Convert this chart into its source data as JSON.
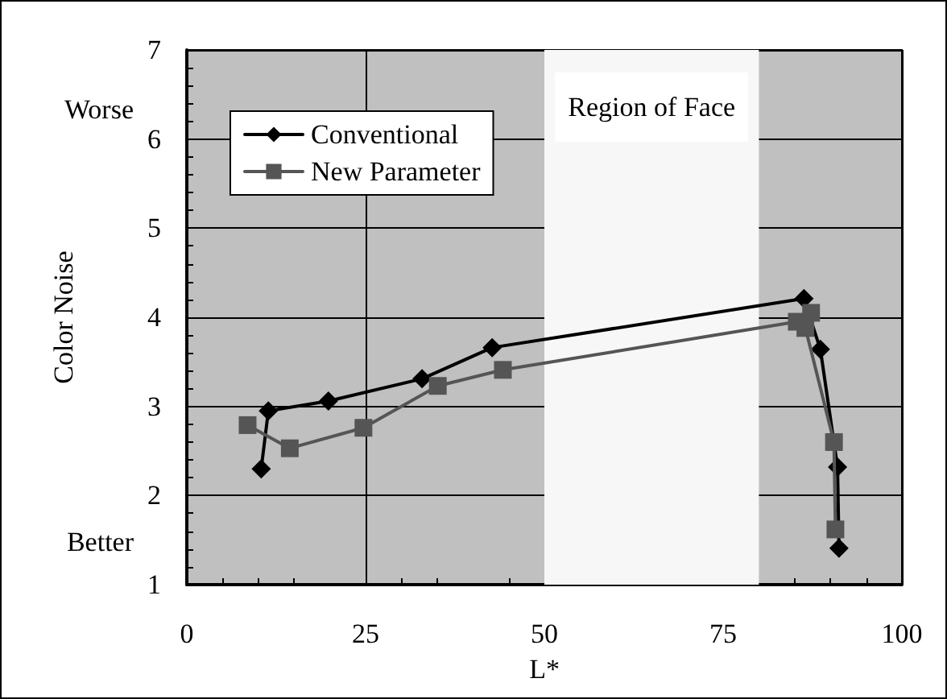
{
  "chart_data": {
    "type": "line",
    "xlabel": "L*",
    "ylabel": "Color Noise",
    "xlim": [
      0,
      100
    ],
    "xticks": [
      0,
      25,
      50,
      75,
      100
    ],
    "ylim": [
      1,
      7
    ],
    "yticks": [
      1,
      2,
      3,
      4,
      5,
      6,
      7
    ],
    "grid": true,
    "legend": "top left",
    "line_style": "solid",
    "annotations": [
      "Worse",
      "Better"
    ],
    "bands": [
      {
        "axis": "x",
        "from": 50,
        "to": 80,
        "label": "Region of Face",
        "color": "#f7f7f7"
      }
    ],
    "series": [
      {
        "name": "Conventional",
        "color": "#000000",
        "marker": "diamond",
        "x": [
          10.4,
          11.4,
          19.8,
          32.9,
          42.7,
          86.3,
          88.6,
          91.0,
          91.2
        ],
        "values": [
          2.3,
          2.95,
          3.06,
          3.31,
          3.66,
          4.21,
          3.64,
          2.32,
          1.41
        ]
      },
      {
        "name": "New Parameter",
        "color": "#555555",
        "marker": "square",
        "x": [
          8.5,
          14.4,
          24.7,
          35.1,
          44.2,
          85.3,
          87.3,
          86.5,
          90.5,
          90.7
        ],
        "values": [
          2.79,
          2.53,
          2.76,
          3.23,
          3.41,
          3.95,
          4.05,
          3.88,
          2.6,
          1.62
        ]
      }
    ]
  }
}
